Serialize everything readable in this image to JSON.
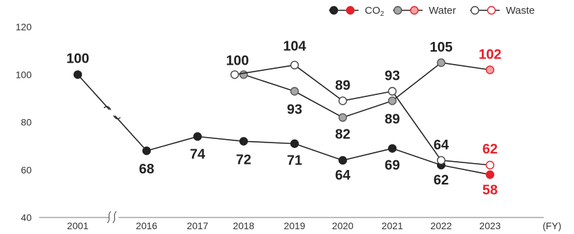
{
  "chart_data": {
    "type": "line",
    "categories": [
      "2001",
      "2016",
      "2017",
      "2018",
      "2019",
      "2020",
      "2021",
      "2022",
      "2023"
    ],
    "xlabel": "(FY)",
    "ylabel": "",
    "ylim": [
      40,
      120
    ],
    "yticks": [
      "40",
      "60",
      "80",
      "100",
      "120"
    ],
    "axis_break_after": "2001",
    "grid": false,
    "legend_position": "top-right",
    "colors": {
      "line": "#222222",
      "highlight": "#e8202a",
      "water_fill": "#a6a6a6",
      "water_highlight": "#f2a39f"
    },
    "series": [
      {
        "name": "CO2",
        "marker": "filled-black",
        "values": [
          100,
          68,
          74,
          72,
          71,
          64,
          69,
          62,
          58
        ],
        "labels": [
          "100",
          "68",
          "74",
          "72",
          "71",
          "64",
          "69",
          "62",
          "58"
        ]
      },
      {
        "name": "Water",
        "marker": "filled-gray",
        "values": [
          null,
          null,
          null,
          100,
          93,
          82,
          89,
          105,
          102
        ],
        "labels": [
          null,
          null,
          null,
          null,
          "93",
          "82",
          "89",
          "105",
          "102"
        ]
      },
      {
        "name": "Waste",
        "marker": "hollow",
        "values": [
          null,
          null,
          null,
          100,
          104,
          89,
          93,
          64,
          62
        ],
        "labels": [
          null,
          null,
          null,
          "100",
          "104",
          "89",
          "93",
          "64",
          "62"
        ]
      }
    ]
  }
}
